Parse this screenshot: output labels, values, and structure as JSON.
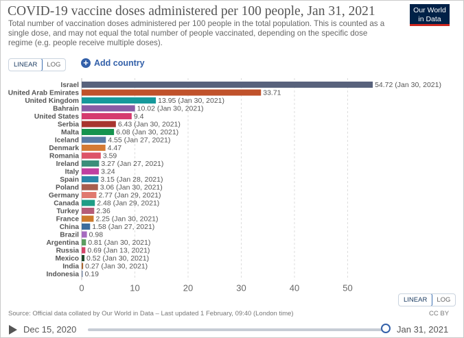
{
  "header": {
    "title": "COVID-19 vaccine doses administered per 100 people, Jan 31, 2021",
    "subtitle": "Total number of vaccination doses administered per 100 people in the total population. This is counted as a single dose, and may not equal the total number of people vaccinated, depending on the specific dose regime (e.g. people receive multiple doses).",
    "logo_line1": "Our World",
    "logo_line2": "in Data"
  },
  "controls": {
    "linear_label": "LINEAR",
    "log_label": "LOG",
    "add_country_label": "Add country"
  },
  "footer": {
    "source": "Source: Official data collated by Our World in Data – Last updated 1 February, 09:40 (London time)",
    "license": "CC BY"
  },
  "timeline": {
    "start_label": "Dec 15, 2020",
    "end_label": "Jan 31, 2021"
  },
  "chart_data": {
    "type": "bar",
    "orientation": "horizontal",
    "title": "COVID-19 vaccine doses administered per 100 people, Jan 31, 2021",
    "xlim": [
      0,
      55
    ],
    "x_ticks": [
      0,
      10,
      20,
      30,
      40,
      50
    ],
    "grid": true,
    "scale": "linear",
    "categories": [
      "Israel",
      "United Arab Emirates",
      "United Kingdom",
      "Bahrain",
      "United States",
      "Serbia",
      "Malta",
      "Iceland",
      "Denmark",
      "Romania",
      "Ireland",
      "Italy",
      "Spain",
      "Poland",
      "Germany",
      "Canada",
      "Turkey",
      "France",
      "China",
      "Brazil",
      "Argentina",
      "Russia",
      "Mexico",
      "India",
      "Indonesia"
    ],
    "values": [
      54.72,
      33.71,
      13.95,
      10.02,
      9.4,
      6.43,
      6.08,
      4.55,
      4.47,
      3.59,
      3.27,
      3.24,
      3.15,
      3.06,
      2.77,
      2.48,
      2.36,
      2.25,
      1.58,
      0.98,
      0.81,
      0.69,
      0.52,
      0.27,
      0.19
    ],
    "value_labels": [
      "54.72 (Jan 30, 2021)",
      "33.71",
      "13.95 (Jan 30, 2021)",
      "10.02 (Jan 30, 2021)",
      "9.4",
      "6.43 (Jan 30, 2021)",
      "6.08 (Jan 30, 2021)",
      "4.55 (Jan 27, 2021)",
      "4.47",
      "3.59",
      "3.27 (Jan 27, 2021)",
      "3.24",
      "3.15 (Jan 28, 2021)",
      "3.06 (Jan 30, 2021)",
      "2.77 (Jan 29, 2021)",
      "2.48 (Jan 29, 2021)",
      "2.36",
      "2.25 (Jan 30, 2021)",
      "1.58 (Jan 27, 2021)",
      "0.98",
      "0.81 (Jan 30, 2021)",
      "0.69 (Jan 13, 2021)",
      "0.52 (Jan 30, 2021)",
      "0.27 (Jan 30, 2021)",
      "0.19"
    ],
    "colors": [
      "#58627c",
      "#c0522b",
      "#16999b",
      "#8a5ba5",
      "#d53b6f",
      "#a8352f",
      "#16934e",
      "#5a7ba6",
      "#d47a34",
      "#dd5468",
      "#3c8e7a",
      "#c03fa0",
      "#2b86a7",
      "#a85e4d",
      "#e0796f",
      "#1e9d86",
      "#b55d78",
      "#cd7b2c",
      "#3c6d9e",
      "#a66bbf",
      "#5b9d60",
      "#d44469",
      "#1f4a2c",
      "#a8652f",
      "#7a8aa5"
    ]
  }
}
